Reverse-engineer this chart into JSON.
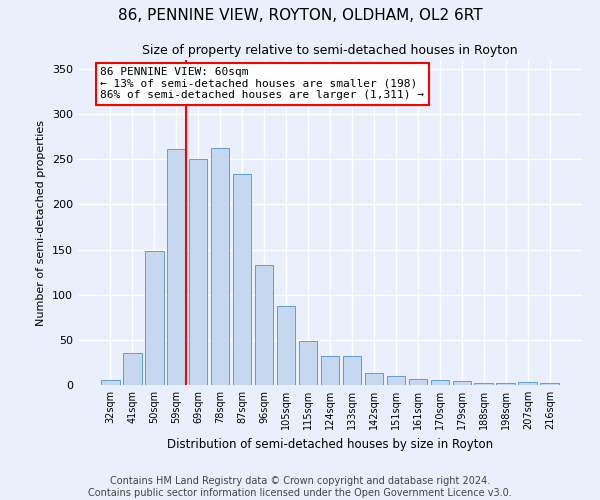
{
  "title": "86, PENNINE VIEW, ROYTON, OLDHAM, OL2 6RT",
  "subtitle": "Size of property relative to semi-detached houses in Royton",
  "xlabel": "Distribution of semi-detached houses by size in Royton",
  "ylabel": "Number of semi-detached properties",
  "categories": [
    "32sqm",
    "41sqm",
    "50sqm",
    "59sqm",
    "69sqm",
    "78sqm",
    "87sqm",
    "96sqm",
    "105sqm",
    "115sqm",
    "124sqm",
    "133sqm",
    "142sqm",
    "151sqm",
    "161sqm",
    "170sqm",
    "179sqm",
    "188sqm",
    "198sqm",
    "207sqm",
    "216sqm"
  ],
  "values": [
    6,
    36,
    148,
    261,
    250,
    262,
    234,
    133,
    87,
    49,
    32,
    32,
    13,
    10,
    7,
    5,
    4,
    2,
    2,
    3,
    2
  ],
  "bar_color": "#c5d8f0",
  "bar_edge_color": "#5a9fd4",
  "redline_index": 3,
  "property_label": "86 PENNINE VIEW: 60sqm",
  "pct_smaller": "13% of semi-detached houses are smaller (198)",
  "pct_larger": "86% of semi-detached houses are larger (1,311)",
  "ylim": [
    0,
    360
  ],
  "yticks": [
    0,
    50,
    100,
    150,
    200,
    250,
    300,
    350
  ],
  "footer": "Contains HM Land Registry data © Crown copyright and database right 2024.\nContains public sector information licensed under the Open Government Licence v3.0.",
  "bg_color": "#eaf0fb",
  "grid_color": "#ffffff",
  "title_fontsize": 11,
  "subtitle_fontsize": 9,
  "footer_fontsize": 7,
  "annotation_fontsize": 8
}
